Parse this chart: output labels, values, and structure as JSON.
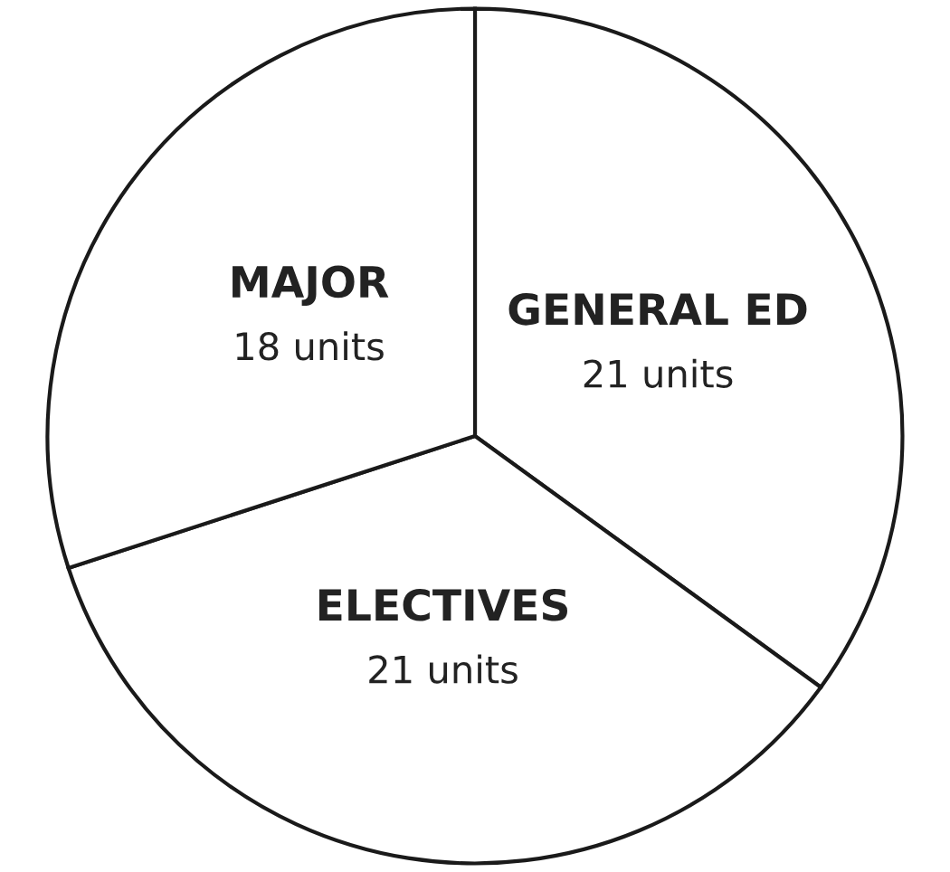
{
  "chart_data": {
    "type": "pie",
    "categories": [
      "GENERAL ED",
      "ELECTIVES",
      "MAJOR"
    ],
    "values": [
      21,
      21,
      18
    ],
    "value_labels": [
      "21 units",
      "21 units",
      "18 units"
    ],
    "colors": [
      "#ffffff",
      "#ffffff",
      "#ffffff"
    ],
    "legend": false
  }
}
